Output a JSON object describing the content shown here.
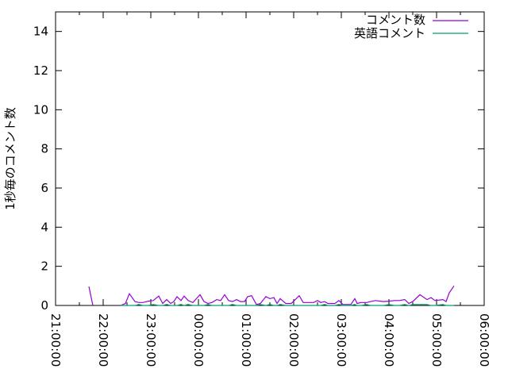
{
  "chart_data": {
    "type": "line",
    "title": "",
    "xlabel": "",
    "ylabel": "1秒毎のコメント数",
    "xlim": [
      "21:00:00",
      "06:00:00"
    ],
    "ylim": [
      0,
      15
    ],
    "x_tick_labels": [
      "21:00:00",
      "22:00:00",
      "23:00:00",
      "00:00:00",
      "01:00:00",
      "02:00:00",
      "03:00:00",
      "04:00:00",
      "05:00:00",
      "06:00:00"
    ],
    "y_tick_labels": [
      "0",
      "2",
      "4",
      "6",
      "8",
      "10",
      "12",
      "14"
    ],
    "y_ticks": [
      0,
      2,
      4,
      6,
      8,
      10,
      12,
      14
    ],
    "grid": false,
    "legend_position": "top-right",
    "x": [
      "21:42",
      "21:47",
      "21:50",
      "22:22",
      "22:28",
      "22:33",
      "22:40",
      "22:45",
      "22:50",
      "22:57",
      "23:03",
      "23:10",
      "23:15",
      "23:20",
      "23:25",
      "23:29",
      "23:33",
      "23:38",
      "23:42",
      "23:47",
      "23:53",
      "00:02",
      "00:07",
      "00:12",
      "00:17",
      "00:23",
      "00:28",
      "00:33",
      "00:38",
      "00:43",
      "00:48",
      "00:53",
      "00:58",
      "01:02",
      "01:07",
      "01:13",
      "01:18",
      "01:25",
      "01:30",
      "01:35",
      "01:39",
      "01:43",
      "01:50",
      "01:57",
      "02:07",
      "02:12",
      "02:25",
      "02:30",
      "02:34",
      "02:39",
      "02:43",
      "02:52",
      "02:57",
      "03:02",
      "03:12",
      "03:17",
      "03:20",
      "03:25",
      "03:32",
      "03:37",
      "03:43",
      "03:53",
      "04:00",
      "04:07",
      "04:13",
      "04:20",
      "04:25",
      "04:30",
      "04:39",
      "04:48",
      "04:53",
      "04:58",
      "05:08",
      "05:12",
      "05:16",
      "05:22"
    ],
    "series": [
      {
        "name": "コメント数",
        "color": "#9400d3",
        "values": [
          0.97,
          0,
          null,
          0,
          0.1,
          0.6,
          0.2,
          0.15,
          0.15,
          0.22,
          0.25,
          0.48,
          0.1,
          0.3,
          0.1,
          0.2,
          0.45,
          0.25,
          0.48,
          0.25,
          0.15,
          0.55,
          0.2,
          0.1,
          0.15,
          0.3,
          0.25,
          0.55,
          0.25,
          0.2,
          0.3,
          0.2,
          0.2,
          0.45,
          0.5,
          0.05,
          0.1,
          0.45,
          0.35,
          0.4,
          0.1,
          0.35,
          0.1,
          0.1,
          0.5,
          0.15,
          0.15,
          0.25,
          0.15,
          0.2,
          0.1,
          0.1,
          0.25,
          0.05,
          0.05,
          0.35,
          0.1,
          0.15,
          0.15,
          0.2,
          0.25,
          0.2,
          0.22,
          0.25,
          0.25,
          0.3,
          0.1,
          0.2,
          0.55,
          0.3,
          0.4,
          0.25,
          0.3,
          0.2,
          0.65,
          1.0
        ]
      },
      {
        "name": "英語コメント",
        "color": "#009e73",
        "values": [
          null,
          null,
          null,
          0,
          0,
          0,
          0,
          0.05,
          0,
          0,
          0.05,
          0,
          0,
          0.05,
          0,
          0,
          0,
          0.05,
          0,
          0.05,
          0,
          0,
          0,
          0.05,
          0,
          0,
          0,
          0,
          0,
          0.05,
          0,
          0,
          0,
          0,
          0,
          0,
          0.05,
          0,
          0.05,
          0,
          0,
          0.05,
          0,
          0,
          0,
          0,
          0,
          0,
          0,
          0.05,
          0,
          0,
          0.05,
          0,
          0,
          0.05,
          0,
          0,
          0.05,
          0,
          0,
          0,
          0.05,
          0,
          0,
          0.05,
          0,
          0.05,
          0.05,
          0.05,
          0,
          0,
          0.05,
          0,
          0,
          0
        ]
      }
    ]
  }
}
